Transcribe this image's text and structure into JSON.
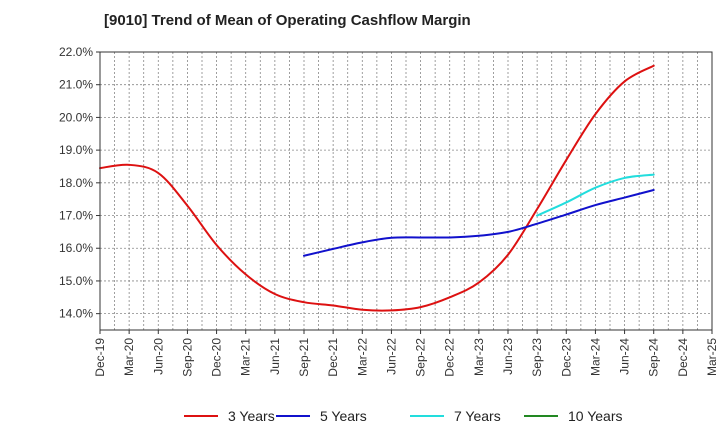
{
  "chart_data": {
    "type": "line",
    "title": "[9010]  Trend of Mean of Operating Cashflow Margin",
    "xlabel": "",
    "ylabel": "",
    "categories": [
      "Dec-19",
      "Mar-20",
      "Jun-20",
      "Sep-20",
      "Dec-20",
      "Mar-21",
      "Jun-21",
      "Sep-21",
      "Dec-21",
      "Mar-22",
      "Jun-22",
      "Sep-22",
      "Dec-22",
      "Mar-23",
      "Jun-23",
      "Sep-23",
      "Dec-23",
      "Mar-24",
      "Jun-24",
      "Sep-24",
      "Dec-24",
      "Mar-25"
    ],
    "ylim": [
      13.5,
      22.0
    ],
    "yticks": [
      14.0,
      15.0,
      16.0,
      17.0,
      18.0,
      19.0,
      20.0,
      21.0,
      22.0
    ],
    "ytick_labels": [
      "14.0%",
      "15.0%",
      "16.0%",
      "17.0%",
      "18.0%",
      "19.0%",
      "20.0%",
      "21.0%",
      "22.0%"
    ],
    "grid": true,
    "legend_position": "bottom",
    "series": [
      {
        "name": "3 Years",
        "color": "#dd1111",
        "values": [
          18.45,
          18.55,
          18.3,
          17.3,
          16.1,
          15.2,
          14.6,
          14.35,
          14.25,
          14.12,
          14.1,
          14.2,
          14.5,
          14.95,
          15.8,
          17.2,
          18.7,
          20.1,
          21.1,
          21.58,
          null,
          null
        ]
      },
      {
        "name": "5 Years",
        "color": "#1111cc",
        "values": [
          null,
          null,
          null,
          null,
          null,
          null,
          null,
          15.77,
          15.98,
          16.18,
          16.32,
          16.33,
          16.33,
          16.38,
          16.5,
          16.75,
          17.03,
          17.32,
          17.55,
          17.78,
          null,
          null
        ]
      },
      {
        "name": "7 Years",
        "color": "#22dddd",
        "values": [
          null,
          null,
          null,
          null,
          null,
          null,
          null,
          null,
          null,
          null,
          null,
          null,
          null,
          null,
          null,
          17.0,
          17.4,
          17.85,
          18.15,
          18.25,
          null,
          null
        ]
      },
      {
        "name": "10 Years",
        "color": "#228822",
        "values": [
          null,
          null,
          null,
          null,
          null,
          null,
          null,
          null,
          null,
          null,
          null,
          null,
          null,
          null,
          null,
          null,
          null,
          null,
          null,
          null,
          null,
          null
        ]
      }
    ]
  }
}
